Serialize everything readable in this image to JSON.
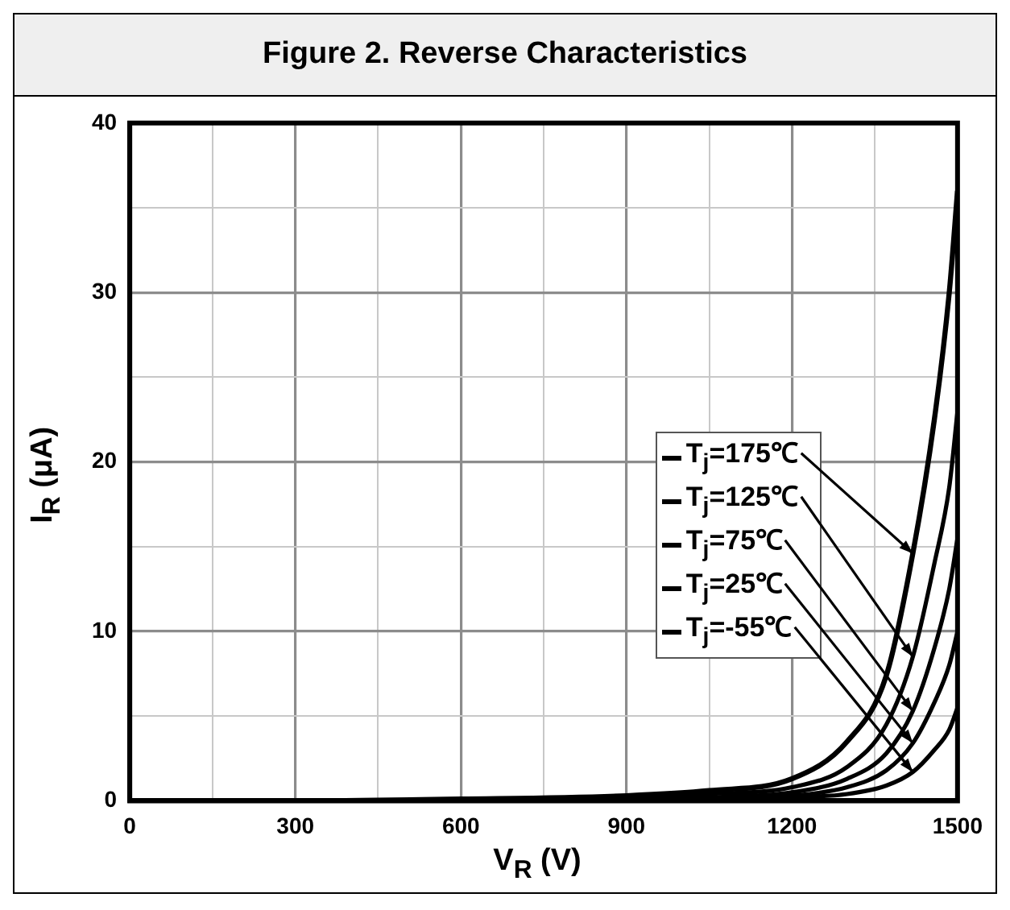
{
  "chart_data": {
    "type": "line",
    "title": "Figure 2. Reverse Characteristics",
    "xlabel": "V$_{R}$ (V)",
    "ylabel": "I$_{R}$ (μA)",
    "x": [
      0,
      300,
      600,
      900,
      1050,
      1200,
      1300,
      1371,
      1419,
      1458,
      1485,
      1500
    ],
    "series": [
      {
        "name": "T$_{j}$=175℃",
        "color": "#000000",
        "values": [
          0,
          0,
          0.1,
          0.3,
          0.6,
          1.3,
          3.5,
          7.4,
          14.6,
          22.5,
          30,
          36
        ]
      },
      {
        "name": "T$_{j}$=125℃",
        "color": "#000000",
        "values": [
          0,
          0,
          0,
          0.2,
          0.4,
          0.8,
          2,
          4.5,
          8.5,
          14,
          18.5,
          23
        ]
      },
      {
        "name": "T$_{j}$=75℃",
        "color": "#000000",
        "values": [
          0,
          0,
          0,
          0.1,
          0.2,
          0.5,
          1.3,
          2.8,
          5.3,
          9,
          12.5,
          15.5
        ]
      },
      {
        "name": "T$_{j}$=25℃",
        "color": "#000000",
        "values": [
          0,
          0,
          0,
          0.1,
          0.1,
          0.3,
          0.8,
          1.8,
          3.4,
          5.8,
          8,
          10
        ]
      },
      {
        "name": "T$_{j}$=-55℃",
        "color": "#000000",
        "values": [
          0,
          0,
          0,
          0,
          0.1,
          0.2,
          0.4,
          0.9,
          1.7,
          3,
          4.2,
          5.5
        ]
      }
    ],
    "xlim": [
      0,
      1500
    ],
    "xticks": [
      0,
      {
        "value": 150,
        "label": null
      },
      300,
      {
        "value": 450,
        "label": null
      },
      600,
      {
        "value": 750,
        "label": null
      },
      900,
      {
        "value": 1050,
        "label": null
      },
      1200,
      {
        "value": 1350,
        "label": null
      },
      1500
    ],
    "ylim": [
      0,
      40
    ],
    "yticks": [
      0,
      {
        "value": 5,
        "label": null
      },
      10,
      {
        "value": 15,
        "label": null
      },
      20,
      {
        "value": 25,
        "label": null
      },
      30,
      {
        "value": 35,
        "label": null
      },
      40
    ],
    "grid": true,
    "legend": "right",
    "marker": "none",
    "line_style": "solid"
  }
}
